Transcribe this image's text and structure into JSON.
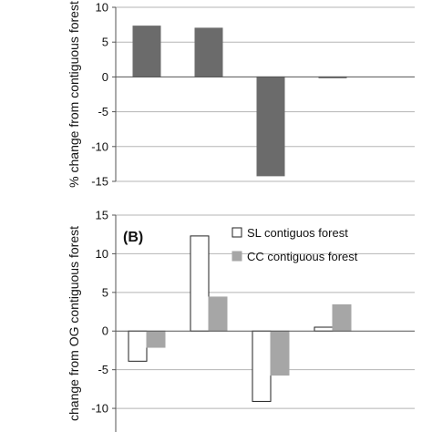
{
  "chart_data": [
    {
      "type": "bar",
      "panel_label": "",
      "ylabel": "% change from contiguous forest",
      "ylim": [
        -15,
        10
      ],
      "yticks": [
        10,
        5,
        0,
        -5,
        -10,
        -15
      ],
      "categories": [
        "",
        "",
        "",
        ""
      ],
      "grid": true,
      "series": [
        {
          "name": "",
          "color": "#6b6b6b",
          "values": [
            7.3,
            7.0,
            -14.2,
            -0.1
          ]
        }
      ]
    },
    {
      "type": "bar",
      "panel_label": "(B)",
      "ylabel": "change from OG contiguous forest",
      "ylim": [
        -14,
        15
      ],
      "yticks": [
        15,
        10,
        5,
        0,
        -5,
        -10
      ],
      "categories": [
        "",
        "",
        "",
        ""
      ],
      "grid": true,
      "legend_position": "top-right",
      "series": [
        {
          "name": "SL contiguos forest",
          "color": "#ffffff",
          "values": [
            -3.9,
            12.3,
            -9.1,
            0.5
          ]
        },
        {
          "name": "CC contiguous forest",
          "color": "#a6a6a6",
          "values": [
            -2.1,
            4.4,
            -5.7,
            3.4
          ]
        }
      ]
    }
  ]
}
